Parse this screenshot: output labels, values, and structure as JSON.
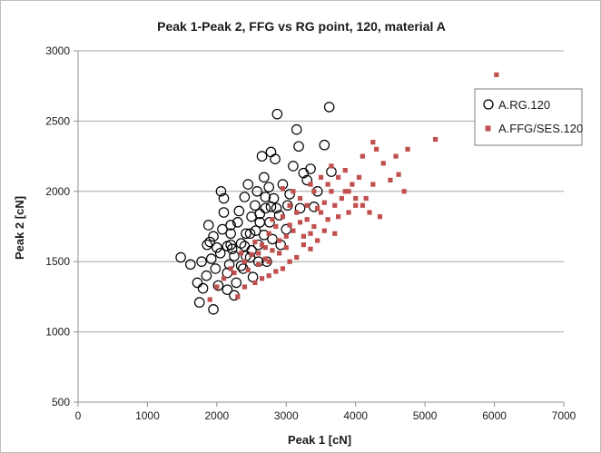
{
  "chart_data": {
    "type": "scatter",
    "title": "Peak 1-Peak 2, FFG vs RG point,  120, material A",
    "xlabel": "Peak 1 [cN]",
    "ylabel": "Peak 2 [cN]",
    "xlim": [
      0,
      7000
    ],
    "ylim": [
      500,
      3000
    ],
    "xticks": [
      0,
      1000,
      2000,
      3000,
      4000,
      5000,
      6000,
      7000
    ],
    "yticks": [
      500,
      1000,
      1500,
      2000,
      2500,
      3000
    ],
    "xtick_labels": [
      "0",
      "1000",
      "2000",
      "3000",
      "4000",
      "5000",
      "6000",
      "7000"
    ],
    "ytick_labels": [
      "500",
      "1000",
      "1500",
      "2000",
      "2500",
      "3000"
    ],
    "grid": "horizontal",
    "legend_position": "right",
    "colors": {
      "rg": "#000000",
      "ffg": "#c0504d",
      "grid": "#a6a6a6"
    },
    "series": [
      {
        "name": "A.RG.120",
        "marker": "open-circle",
        "points": [
          [
            1480,
            1530
          ],
          [
            1620,
            1480
          ],
          [
            1720,
            1350
          ],
          [
            1750,
            1210
          ],
          [
            1800,
            1310
          ],
          [
            1850,
            1400
          ],
          [
            1900,
            1640
          ],
          [
            1920,
            1520
          ],
          [
            1950,
            1160
          ],
          [
            1980,
            1450
          ],
          [
            2020,
            1330
          ],
          [
            2050,
            1560
          ],
          [
            2080,
            1730
          ],
          [
            2100,
            1950
          ],
          [
            2060,
            2000
          ],
          [
            2150,
            1610
          ],
          [
            2180,
            1480
          ],
          [
            2200,
            1700
          ],
          [
            2220,
            1590
          ],
          [
            2250,
            1260
          ],
          [
            2280,
            1350
          ],
          [
            2300,
            1780
          ],
          [
            2320,
            1860
          ],
          [
            2350,
            1630
          ],
          [
            2380,
            1450
          ],
          [
            2400,
            1960
          ],
          [
            2420,
            1540
          ],
          [
            2450,
            2050
          ],
          [
            2480,
            1700
          ],
          [
            2500,
            1820
          ],
          [
            2520,
            1390
          ],
          [
            2550,
            1900
          ],
          [
            2580,
            2000
          ],
          [
            2600,
            1620
          ],
          [
            2620,
            1780
          ],
          [
            2650,
            2250
          ],
          [
            2680,
            2100
          ],
          [
            2700,
            1880
          ],
          [
            2720,
            1500
          ],
          [
            2750,
            2030
          ],
          [
            2780,
            2280
          ],
          [
            2800,
            1660
          ],
          [
            2820,
            1950
          ],
          [
            2840,
            2230
          ],
          [
            2870,
            2550
          ],
          [
            2900,
            1830
          ],
          [
            2950,
            2050
          ],
          [
            3000,
            1730
          ],
          [
            3050,
            1980
          ],
          [
            3100,
            2180
          ],
          [
            3150,
            2440
          ],
          [
            3180,
            2320
          ],
          [
            3200,
            1880
          ],
          [
            3250,
            2130
          ],
          [
            3300,
            2080
          ],
          [
            3350,
            2160
          ],
          [
            3400,
            1890
          ],
          [
            3450,
            2000
          ],
          [
            3550,
            2330
          ],
          [
            3620,
            2600
          ],
          [
            3650,
            2140
          ],
          [
            2100,
            1850
          ],
          [
            2200,
            1620
          ],
          [
            2400,
            1610
          ],
          [
            2480,
            1530
          ],
          [
            2560,
            1720
          ],
          [
            2620,
            1840
          ],
          [
            2700,
            1960
          ],
          [
            2760,
            1780
          ],
          [
            2860,
            1880
          ],
          [
            2920,
            1620
          ],
          [
            3020,
            1900
          ],
          [
            2150,
            1420
          ],
          [
            2350,
            1470
          ],
          [
            2250,
            1540
          ],
          [
            1880,
            1760
          ],
          [
            2000,
            1600
          ],
          [
            1950,
            1680
          ],
          [
            2500,
            1580
          ],
          [
            2680,
            1690
          ],
          [
            2780,
            1890
          ],
          [
            2200,
            1760
          ],
          [
            2420,
            1700
          ],
          [
            2600,
            1500
          ],
          [
            1780,
            1500
          ],
          [
            1860,
            1620
          ],
          [
            2150,
            1300
          ]
        ]
      },
      {
        "name": "A.FFG/SES.120",
        "marker": "square",
        "points": [
          [
            1900,
            1230
          ],
          [
            2000,
            1320
          ],
          [
            2100,
            1380
          ],
          [
            2250,
            1420
          ],
          [
            2300,
            1250
          ],
          [
            2400,
            1500
          ],
          [
            2500,
            1550
          ],
          [
            2550,
            1350
          ],
          [
            2600,
            1480
          ],
          [
            2650,
            1620
          ],
          [
            2700,
            1520
          ],
          [
            2750,
            1700
          ],
          [
            2800,
            1580
          ],
          [
            2850,
            1750
          ],
          [
            2900,
            1650
          ],
          [
            2950,
            1820
          ],
          [
            3000,
            1600
          ],
          [
            3050,
            1900
          ],
          [
            3100,
            1720
          ],
          [
            3150,
            1850
          ],
          [
            3200,
            1950
          ],
          [
            3250,
            1680
          ],
          [
            3300,
            1800
          ],
          [
            3350,
            2050
          ],
          [
            3400,
            1750
          ],
          [
            3450,
            1880
          ],
          [
            3500,
            2100
          ],
          [
            3550,
            1920
          ],
          [
            3600,
            1800
          ],
          [
            3650,
            2000
          ],
          [
            3700,
            1700
          ],
          [
            3750,
            2100
          ],
          [
            3800,
            1950
          ],
          [
            3850,
            2150
          ],
          [
            3900,
            1850
          ],
          [
            3950,
            2050
          ],
          [
            4000,
            1900
          ],
          [
            4050,
            2100
          ],
          [
            4100,
            2250
          ],
          [
            4150,
            1950
          ],
          [
            4200,
            1850
          ],
          [
            4250,
            2050
          ],
          [
            4300,
            2300
          ],
          [
            4350,
            1820
          ],
          [
            4400,
            2200
          ],
          [
            4500,
            2080
          ],
          [
            4580,
            2250
          ],
          [
            4620,
            2120
          ],
          [
            4700,
            2000
          ],
          [
            4750,
            2300
          ],
          [
            5150,
            2370
          ],
          [
            6030,
            2830
          ],
          [
            3650,
            2180
          ],
          [
            3550,
            1720
          ],
          [
            3450,
            1650
          ],
          [
            3350,
            1590
          ],
          [
            3250,
            1620
          ],
          [
            3150,
            1530
          ],
          [
            3050,
            1500
          ],
          [
            2950,
            1450
          ],
          [
            2850,
            1430
          ],
          [
            2750,
            1400
          ],
          [
            2650,
            1380
          ],
          [
            2950,
            2020
          ],
          [
            3100,
            2000
          ],
          [
            3350,
            1700
          ],
          [
            3700,
            1900
          ],
          [
            3850,
            2000
          ],
          [
            4100,
            1900
          ],
          [
            4250,
            2350
          ],
          [
            2350,
            1560
          ],
          [
            2450,
            1440
          ],
          [
            2550,
            1640
          ],
          [
            2700,
            1600
          ],
          [
            2800,
            1800
          ],
          [
            2900,
            1560
          ],
          [
            3000,
            1680
          ],
          [
            3200,
            1780
          ],
          [
            3300,
            1900
          ],
          [
            3400,
            2000
          ],
          [
            3500,
            1850
          ],
          [
            3600,
            2050
          ],
          [
            3750,
            1820
          ],
          [
            3900,
            2000
          ],
          [
            4000,
            1950
          ],
          [
            2200,
            1450
          ],
          [
            2400,
            1320
          ],
          [
            2600,
            1560
          ],
          [
            2750,
            1500
          ],
          [
            3050,
            1760
          ]
        ]
      }
    ]
  }
}
